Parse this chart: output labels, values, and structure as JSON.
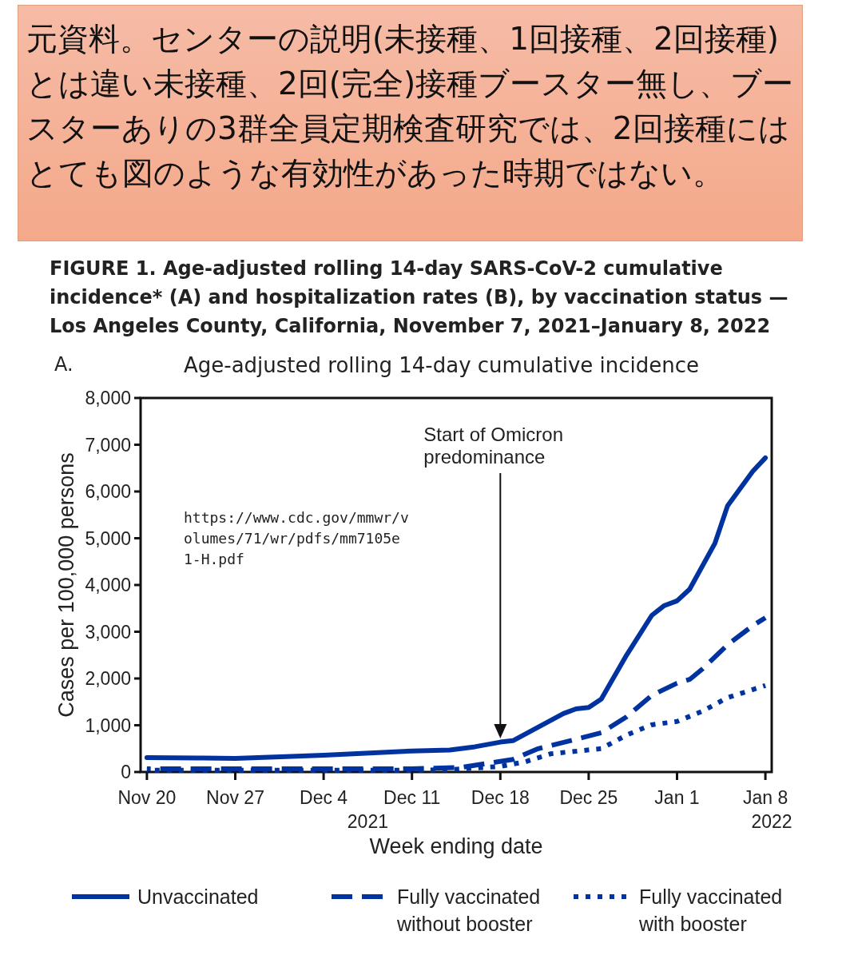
{
  "chart_data": {
    "type": "line",
    "title": "FIGURE 1. Age-adjusted rolling 14-day SARS-CoV-2 cumulative incidence* (A) and hospitalization rates (B), by vaccination status — Los Angeles County, California, November 7, 2021–January 8, 2022",
    "subtitle": "Age-adjusted rolling 14-day cumulative incidence",
    "xlabel": "Week ending date",
    "ylabel": "Cases per 100,000 persons",
    "annotations": [
      "元資料。センターの説明(未接種、1回接種、2回接種)とは違い未接種、2回(完全)接種ブースター無し、ブースターありの3群全員定期検査研究では、2回接種にはとても図のような有効性があった時期ではない。",
      "A.",
      "https://www.cdc.gov/mmwr/v\nolumes/71/wr/pdfs/mm7105e\n1-H.pdf",
      "2021",
      "2022",
      "Start of Omicron\npredominance"
    ],
    "xlim": [
      "2021-11-19T12:00",
      "2022-01-08T12:00"
    ],
    "xticks": [
      {
        "value": "2021-11-20",
        "label": "Nov 20"
      },
      {
        "value": "2021-11-27",
        "label": "Nov 27"
      },
      {
        "value": "2021-12-04",
        "label": "Dec 4"
      },
      {
        "value": "2021-12-11",
        "label": "Dec 11"
      },
      {
        "value": "2021-12-18",
        "label": "Dec 18"
      },
      {
        "value": "2021-12-25",
        "label": "Dec 25"
      },
      {
        "value": "2022-01-01",
        "label": "Jan 1"
      },
      {
        "value": "2022-01-08",
        "label": "Jan 8"
      }
    ],
    "ylim": [
      0,
      8000
    ],
    "yticks": [
      {
        "value": 0,
        "label": "0"
      },
      {
        "value": 1000,
        "label": "1,000"
      },
      {
        "value": 2000,
        "label": "2,000"
      },
      {
        "value": 3000,
        "label": "3,000"
      },
      {
        "value": 4000,
        "label": "4,000"
      },
      {
        "value": 5000,
        "label": "5,000"
      },
      {
        "value": 6000,
        "label": "6,000"
      },
      {
        "value": 7000,
        "label": "7,000"
      },
      {
        "value": 8000,
        "label": "8,000"
      }
    ],
    "grid": false,
    "legend": "bottom",
    "marker": "none",
    "series": [
      {
        "name": "Unvaccinated",
        "color": "#0033a0",
        "line_style": "solid",
        "x": [
          "2021-11-20",
          "2021-11-24",
          "2021-11-27",
          "2021-12-01",
          "2021-12-04",
          "2021-12-08",
          "2021-12-11",
          "2021-12-14",
          "2021-12-16",
          "2021-12-18",
          "2021-12-19",
          "2021-12-21",
          "2021-12-23",
          "2021-12-24",
          "2021-12-25",
          "2021-12-26",
          "2021-12-28",
          "2021-12-30",
          "2021-12-31",
          "2022-01-01",
          "2022-01-02",
          "2022-01-04",
          "2022-01-05",
          "2022-01-07",
          "2022-01-08"
        ],
        "values": [
          310,
          300,
          290,
          330,
          360,
          410,
          450,
          470,
          540,
          640,
          670,
          960,
          1250,
          1350,
          1380,
          1560,
          2500,
          3350,
          3560,
          3660,
          3910,
          4890,
          5690,
          6430,
          6720
        ]
      },
      {
        "name": "Fully vaccinated without booster",
        "color": "#0033a0",
        "line_style": "dashed",
        "x": [
          "2021-11-20",
          "2021-11-27",
          "2021-12-04",
          "2021-12-11",
          "2021-12-15",
          "2021-12-19",
          "2021-12-21",
          "2021-12-24",
          "2021-12-26",
          "2021-12-28",
          "2021-12-30",
          "2022-01-01",
          "2022-01-02",
          "2022-01-03",
          "2022-01-05",
          "2022-01-07",
          "2022-01-08"
        ],
        "values": [
          70,
          70,
          70,
          70,
          100,
          270,
          500,
          700,
          840,
          1180,
          1640,
          1900,
          1980,
          2200,
          2720,
          3130,
          3300
        ]
      },
      {
        "name": "Fully vaccinated with booster",
        "color": "#0033a0",
        "line_style": "dotted",
        "x": [
          "2021-11-20",
          "2021-11-27",
          "2021-12-04",
          "2021-12-11",
          "2021-12-14",
          "2021-12-18",
          "2021-12-20",
          "2021-12-22",
          "2021-12-26",
          "2021-12-28",
          "2021-12-30",
          "2022-01-01",
          "2022-01-03",
          "2022-01-05",
          "2022-01-08"
        ],
        "values": [
          40,
          40,
          40,
          40,
          50,
          120,
          220,
          390,
          500,
          790,
          1010,
          1080,
          1300,
          1590,
          1850
        ]
      }
    ]
  }
}
